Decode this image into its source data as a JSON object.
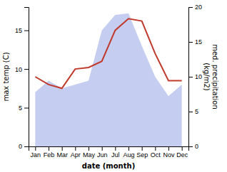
{
  "chart_data": {
    "type": "line",
    "x_label": "date (month)",
    "y_label": "max temp (C)",
    "y2_label": "med. precipitation\n(kg/m2)",
    "categories": [
      "Jan",
      "Feb",
      "Mar",
      "Apr",
      "May",
      "Jun",
      "Jul",
      "Aug",
      "Sep",
      "Oct",
      "Nov",
      "Dec"
    ],
    "series": [
      {
        "type": "area",
        "color": "#c5cef0",
        "values": [
          7.0,
          8.5,
          7.5,
          8.0,
          8.5,
          15.0,
          17.0,
          17.2,
          13.0,
          9.0,
          6.5,
          8.0
        ]
      },
      {
        "type": "line",
        "color": "#c0392b",
        "values": [
          9.0,
          8.0,
          7.5,
          10.0,
          10.2,
          11.0,
          15.0,
          16.5,
          16.2,
          12.0,
          8.5,
          8.5
        ]
      }
    ],
    "ylim": [
      0,
      18
    ],
    "yticks": [
      0,
      5,
      10,
      15
    ],
    "y2lim": [
      0,
      20
    ],
    "y2ticks": [
      0,
      5,
      10,
      15,
      20
    ]
  }
}
